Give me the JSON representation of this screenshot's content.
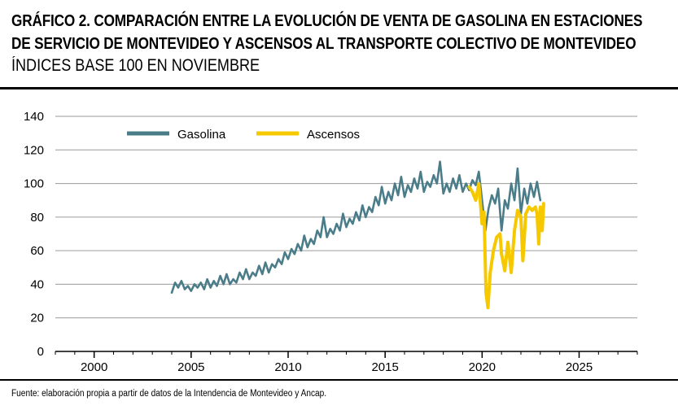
{
  "header": {
    "title_line1": "GRÁFICO 2. COMPARACIÓN ENTRE LA EVOLUCIÓN DE VENTA DE GASOLINA EN ESTACIONES",
    "title_line2": "DE SERVICIO DE MONTEVIDEO Y ASCENSOS AL TRANSPORTE COLECTIVO DE MONTEVIDEO",
    "subtitle": "ÍNDICES BASE 100 EN NOVIEMBRE"
  },
  "footer": {
    "source": "Fuente: elaboración propia a partir de datos de la Intendencia de Montevideo y Ancap."
  },
  "chart_data": {
    "type": "line",
    "title": "Comparación entre la evolución de venta de gasolina y ascensos al transporte colectivo de Montevideo",
    "subtitle": "Índices base 100 en noviembre",
    "xlabel": "",
    "ylabel": "",
    "xlim": [
      1998,
      2028
    ],
    "ylim": [
      0,
      140
    ],
    "x_ticks": [
      2000,
      2005,
      2010,
      2015,
      2020,
      2025
    ],
    "y_ticks": [
      0,
      20,
      40,
      60,
      80,
      100,
      120,
      140
    ],
    "grid": "horizontal",
    "legend_position": "top-left",
    "series": [
      {
        "name": "Gasolina",
        "color": "#4a7d89",
        "points": [
          [
            2004.0,
            35
          ],
          [
            2004.17,
            41
          ],
          [
            2004.33,
            38
          ],
          [
            2004.5,
            42
          ],
          [
            2004.67,
            37
          ],
          [
            2004.83,
            39
          ],
          [
            2005.0,
            36
          ],
          [
            2005.17,
            40
          ],
          [
            2005.33,
            38
          ],
          [
            2005.5,
            41
          ],
          [
            2005.67,
            37
          ],
          [
            2005.83,
            43
          ],
          [
            2006.0,
            38
          ],
          [
            2006.17,
            42
          ],
          [
            2006.33,
            39
          ],
          [
            2006.5,
            45
          ],
          [
            2006.67,
            40
          ],
          [
            2006.83,
            46
          ],
          [
            2007.0,
            40
          ],
          [
            2007.17,
            43
          ],
          [
            2007.33,
            41
          ],
          [
            2007.5,
            47
          ],
          [
            2007.67,
            43
          ],
          [
            2007.83,
            49
          ],
          [
            2008.0,
            43
          ],
          [
            2008.17,
            47
          ],
          [
            2008.33,
            45
          ],
          [
            2008.5,
            51
          ],
          [
            2008.67,
            46
          ],
          [
            2008.83,
            53
          ],
          [
            2009.0,
            47
          ],
          [
            2009.17,
            52
          ],
          [
            2009.33,
            50
          ],
          [
            2009.5,
            55
          ],
          [
            2009.67,
            52
          ],
          [
            2009.83,
            59
          ],
          [
            2010.0,
            55
          ],
          [
            2010.17,
            61
          ],
          [
            2010.33,
            58
          ],
          [
            2010.5,
            64
          ],
          [
            2010.67,
            60
          ],
          [
            2010.83,
            69
          ],
          [
            2011.0,
            62
          ],
          [
            2011.17,
            67
          ],
          [
            2011.33,
            64
          ],
          [
            2011.5,
            72
          ],
          [
            2011.67,
            68
          ],
          [
            2011.83,
            80
          ],
          [
            2012.0,
            68
          ],
          [
            2012.17,
            73
          ],
          [
            2012.33,
            70
          ],
          [
            2012.5,
            76
          ],
          [
            2012.67,
            72
          ],
          [
            2012.83,
            82
          ],
          [
            2013.0,
            74
          ],
          [
            2013.17,
            79
          ],
          [
            2013.33,
            76
          ],
          [
            2013.5,
            83
          ],
          [
            2013.67,
            78
          ],
          [
            2013.83,
            87
          ],
          [
            2014.0,
            80
          ],
          [
            2014.17,
            86
          ],
          [
            2014.33,
            83
          ],
          [
            2014.5,
            92
          ],
          [
            2014.67,
            87
          ],
          [
            2014.83,
            98
          ],
          [
            2015.0,
            88
          ],
          [
            2015.17,
            95
          ],
          [
            2015.33,
            90
          ],
          [
            2015.5,
            100
          ],
          [
            2015.67,
            93
          ],
          [
            2015.83,
            104
          ],
          [
            2016.0,
            92
          ],
          [
            2016.17,
            99
          ],
          [
            2016.33,
            95
          ],
          [
            2016.5,
            103
          ],
          [
            2016.67,
            97
          ],
          [
            2016.83,
            107
          ],
          [
            2017.0,
            95
          ],
          [
            2017.17,
            101
          ],
          [
            2017.33,
            98
          ],
          [
            2017.5,
            105
          ],
          [
            2017.67,
            100
          ],
          [
            2017.83,
            113
          ],
          [
            2018.0,
            94
          ],
          [
            2018.17,
            100
          ],
          [
            2018.33,
            95
          ],
          [
            2018.5,
            103
          ],
          [
            2018.67,
            97
          ],
          [
            2018.83,
            105
          ],
          [
            2019.0,
            95
          ],
          [
            2019.17,
            100
          ],
          [
            2019.33,
            96
          ],
          [
            2019.5,
            102
          ],
          [
            2019.67,
            99
          ],
          [
            2019.83,
            107
          ],
          [
            2020.0,
            90
          ],
          [
            2020.17,
            72
          ],
          [
            2020.33,
            85
          ],
          [
            2020.5,
            93
          ],
          [
            2020.67,
            88
          ],
          [
            2020.83,
            97
          ],
          [
            2021.0,
            72
          ],
          [
            2021.17,
            90
          ],
          [
            2021.33,
            85
          ],
          [
            2021.5,
            100
          ],
          [
            2021.67,
            90
          ],
          [
            2021.83,
            109
          ],
          [
            2022.0,
            82
          ],
          [
            2022.17,
            97
          ],
          [
            2022.33,
            88
          ],
          [
            2022.5,
            100
          ],
          [
            2022.67,
            92
          ],
          [
            2022.83,
            101
          ],
          [
            2023.0,
            90
          ]
        ]
      },
      {
        "name": "Ascensos",
        "color": "#f5c800",
        "points": [
          [
            2019.33,
            98
          ],
          [
            2019.5,
            95
          ],
          [
            2019.67,
            90
          ],
          [
            2019.83,
            100
          ],
          [
            2020.0,
            76
          ],
          [
            2020.1,
            83
          ],
          [
            2020.2,
            35
          ],
          [
            2020.3,
            26
          ],
          [
            2020.42,
            47
          ],
          [
            2020.58,
            60
          ],
          [
            2020.75,
            68
          ],
          [
            2020.92,
            70
          ],
          [
            2021.0,
            58
          ],
          [
            2021.17,
            48
          ],
          [
            2021.33,
            65
          ],
          [
            2021.5,
            47
          ],
          [
            2021.67,
            72
          ],
          [
            2021.83,
            84
          ],
          [
            2022.0,
            80
          ],
          [
            2022.1,
            54
          ],
          [
            2022.25,
            82
          ],
          [
            2022.42,
            86
          ],
          [
            2022.58,
            84
          ],
          [
            2022.75,
            86
          ],
          [
            2022.83,
            82
          ],
          [
            2022.92,
            64
          ],
          [
            2023.0,
            86
          ],
          [
            2023.1,
            72
          ],
          [
            2023.17,
            88
          ]
        ]
      }
    ]
  }
}
